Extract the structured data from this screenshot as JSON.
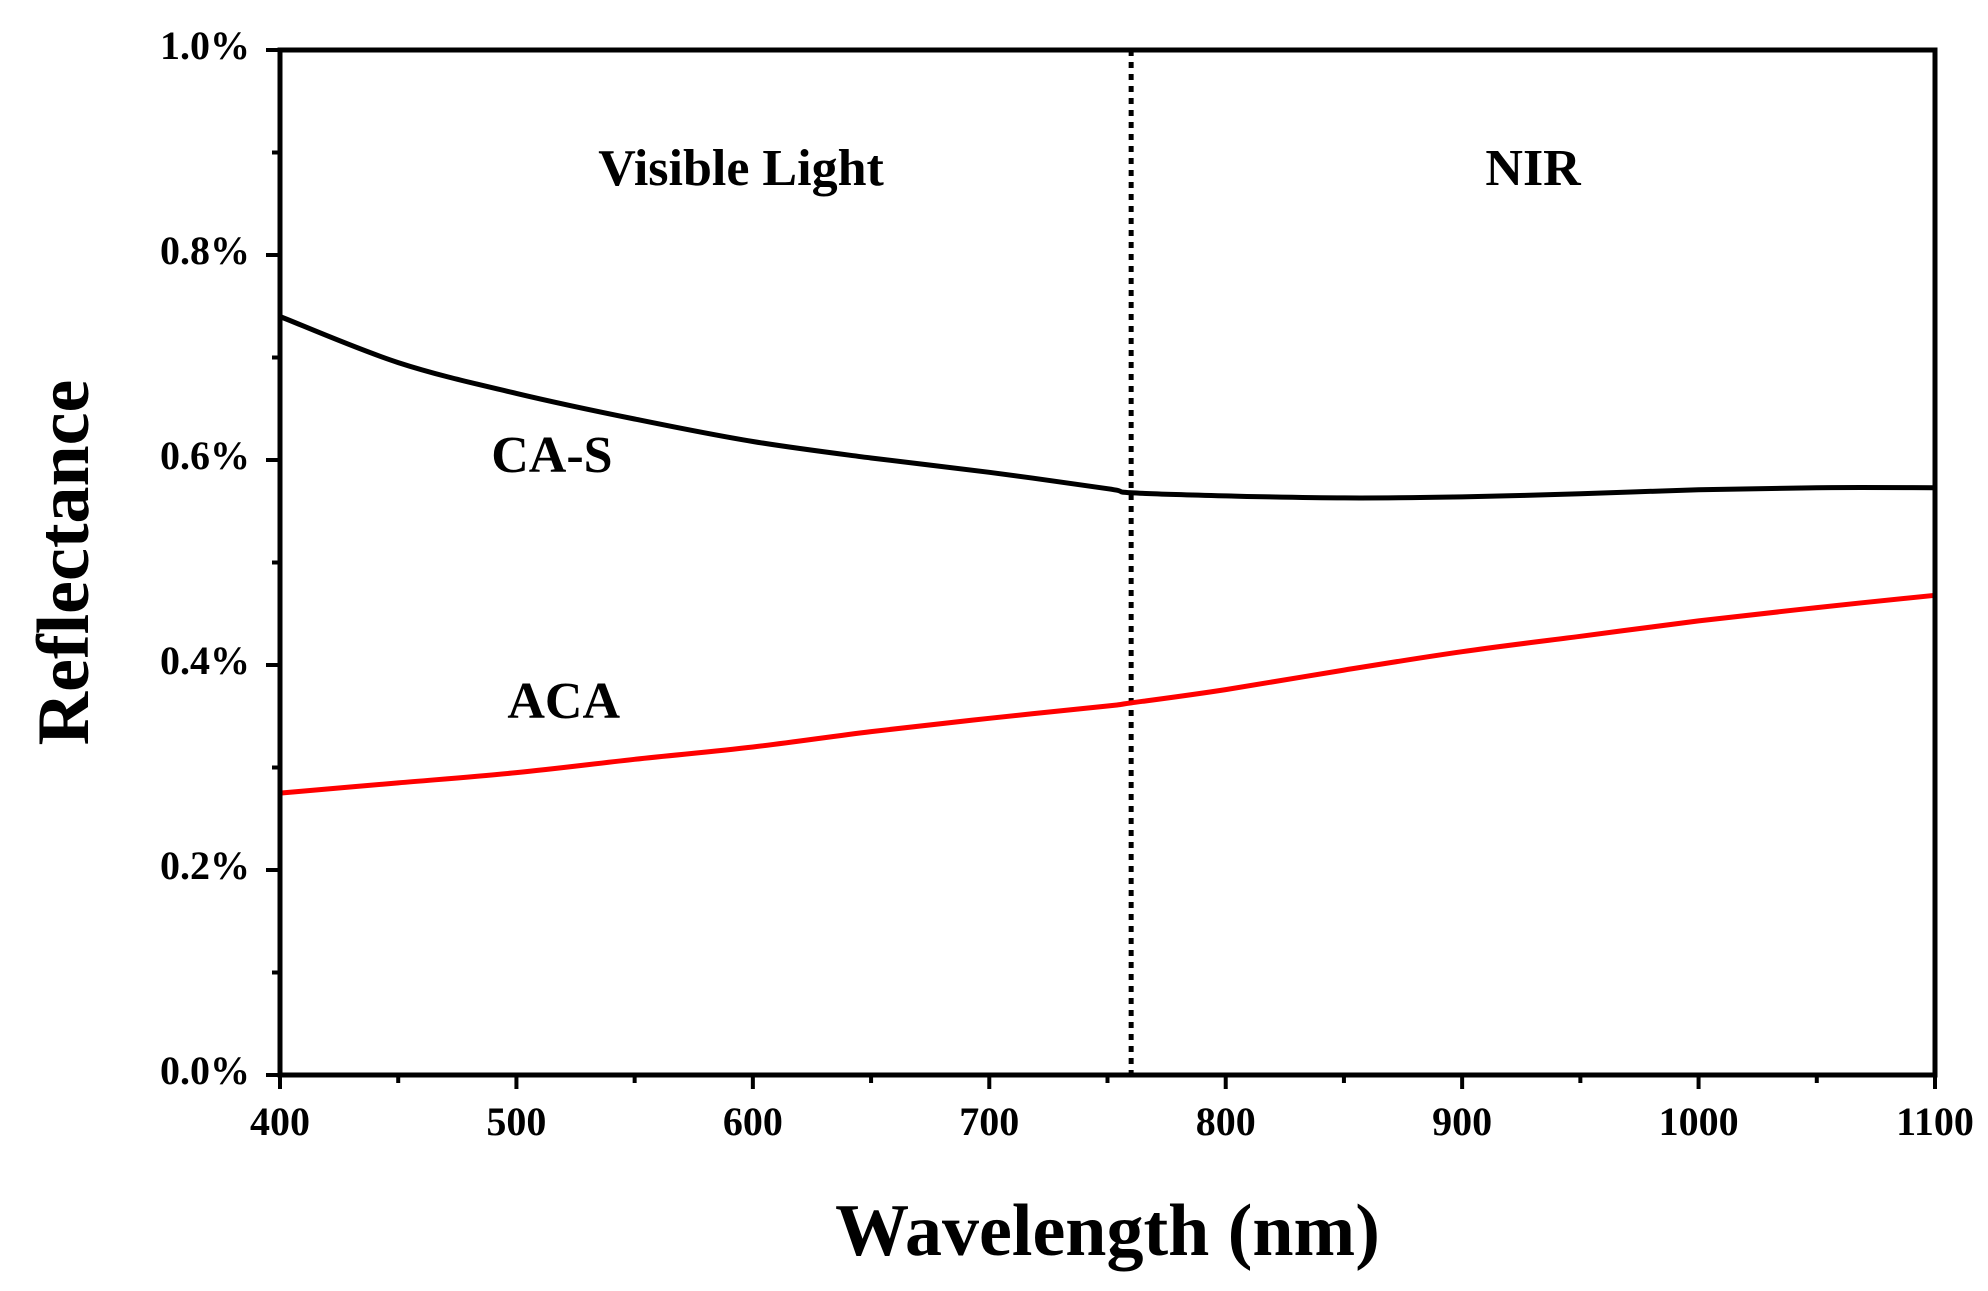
{
  "chart_data": {
    "type": "line",
    "title": "",
    "xlabel": "Wavelength (nm)",
    "ylabel": "Reflectance",
    "xlim": [
      400,
      1100
    ],
    "ylim": [
      0.0,
      1.0
    ],
    "x_ticks": [
      400,
      500,
      600,
      700,
      800,
      900,
      1000,
      1100
    ],
    "x_tick_labels": [
      "400",
      "500",
      "600",
      "700",
      "800",
      "900",
      "1000",
      "1100"
    ],
    "y_ticks": [
      0.0,
      0.2,
      0.4,
      0.6,
      0.8,
      1.0
    ],
    "y_tick_labels": [
      "0.0%",
      "0.2%",
      "0.4%",
      "0.6%",
      "0.8%",
      "1.0%"
    ],
    "grid": false,
    "divider": {
      "x": 760,
      "style": "dotted"
    },
    "regions": [
      {
        "label": "Visible Light",
        "x": 595,
        "y": 0.88
      },
      {
        "label": "NIR",
        "x": 930,
        "y": 0.88
      }
    ],
    "series": [
      {
        "name": "CA-S",
        "color": "#000000",
        "label_pos": {
          "x": 515,
          "y": 0.6
        },
        "x": [
          400,
          450,
          500,
          550,
          600,
          650,
          700,
          750,
          760,
          800,
          850,
          900,
          950,
          1000,
          1050,
          1100
        ],
        "values": [
          0.74,
          0.695,
          0.665,
          0.64,
          0.618,
          0.602,
          0.588,
          0.572,
          0.568,
          0.565,
          0.563,
          0.564,
          0.567,
          0.571,
          0.573,
          0.573
        ]
      },
      {
        "name": "ACA",
        "color": "#ff0000",
        "label_pos": {
          "x": 520,
          "y": 0.36
        },
        "x": [
          400,
          450,
          500,
          550,
          600,
          650,
          700,
          750,
          760,
          800,
          850,
          900,
          950,
          1000,
          1050,
          1100
        ],
        "values": [
          0.275,
          0.285,
          0.295,
          0.308,
          0.32,
          0.335,
          0.348,
          0.36,
          0.363,
          0.376,
          0.395,
          0.413,
          0.428,
          0.443,
          0.456,
          0.468
        ]
      }
    ]
  }
}
